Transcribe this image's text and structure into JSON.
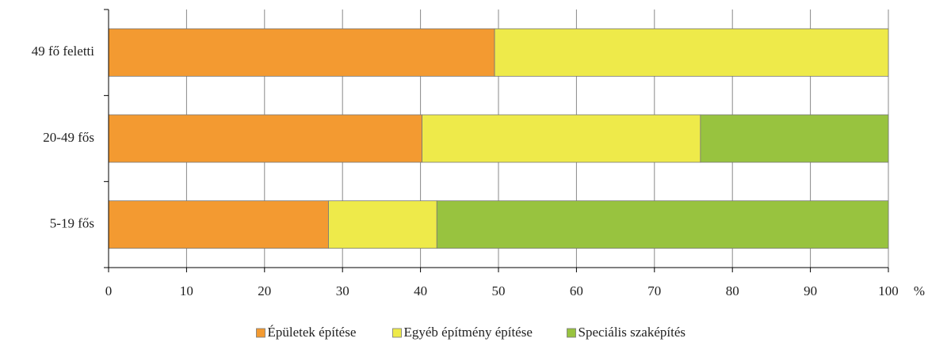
{
  "chart_data": {
    "type": "stacked_barh",
    "categories": [
      "49 fő feletti",
      "20-49 fős",
      "5-19 fős"
    ],
    "series": [
      {
        "name": "Épületek építése",
        "color": "#f39a31",
        "values": [
          49.5,
          40.2,
          28.2
        ]
      },
      {
        "name": "Egyéb építmény építése",
        "color": "#eeea4a",
        "values": [
          50.5,
          35.7,
          13.9
        ]
      },
      {
        "name": "Speciális szaképítés",
        "color": "#98c33f",
        "values": [
          0,
          24.1,
          57.9
        ]
      }
    ],
    "x_label": "%",
    "xlim": [
      0,
      100
    ],
    "xticks": [
      0,
      10,
      20,
      30,
      40,
      50,
      60,
      70,
      80,
      90,
      100
    ],
    "grid": true,
    "legend": "bottom"
  }
}
